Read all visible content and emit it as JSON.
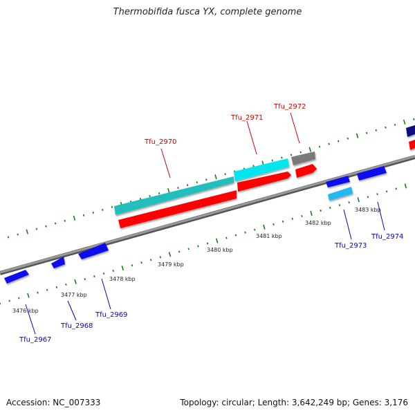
{
  "title": "Thermobifida fusca YX, complete genome",
  "footer": {
    "accession": "Accession: NC_007333",
    "summary": "Topology: circular; Length: 3,642,249 bp; Genes: 3,176"
  },
  "colors": {
    "backbone": "#888888",
    "ruler_ticks": "#1a7a1a",
    "forward_label": "#cc0000",
    "reverse_label": "#0000cc",
    "gene_red": "#ff0000",
    "gene_cyan": "#00e5ee",
    "gene_teal": "#22bdbd",
    "gene_gray": "#7a7a7a",
    "gene_blue": "#1111ee",
    "gene_lightblue": "#22b8f0",
    "gene_navy": "#101080"
  },
  "scale_labels": [
    {
      "text": "3476 kbp"
    },
    {
      "text": "3477 kbp"
    },
    {
      "text": "3478 kbp"
    },
    {
      "text": "3479 kbp"
    },
    {
      "text": "3480 kbp"
    },
    {
      "text": "3481 kbp"
    },
    {
      "text": "3482 kbp"
    },
    {
      "text": "3483 kbp"
    }
  ],
  "gene_labels": [
    {
      "text": "Tfu_2970",
      "strand": "forward"
    },
    {
      "text": "Tfu_2971",
      "strand": "forward"
    },
    {
      "text": "Tfu_2972",
      "strand": "forward"
    },
    {
      "text": "Tfu_2967",
      "strand": "reverse"
    },
    {
      "text": "Tfu_2968",
      "strand": "reverse"
    },
    {
      "text": "Tfu_2969",
      "strand": "reverse"
    },
    {
      "text": "Tfu_2973",
      "strand": "reverse"
    },
    {
      "text": "Tfu_2974",
      "strand": "reverse"
    }
  ]
}
